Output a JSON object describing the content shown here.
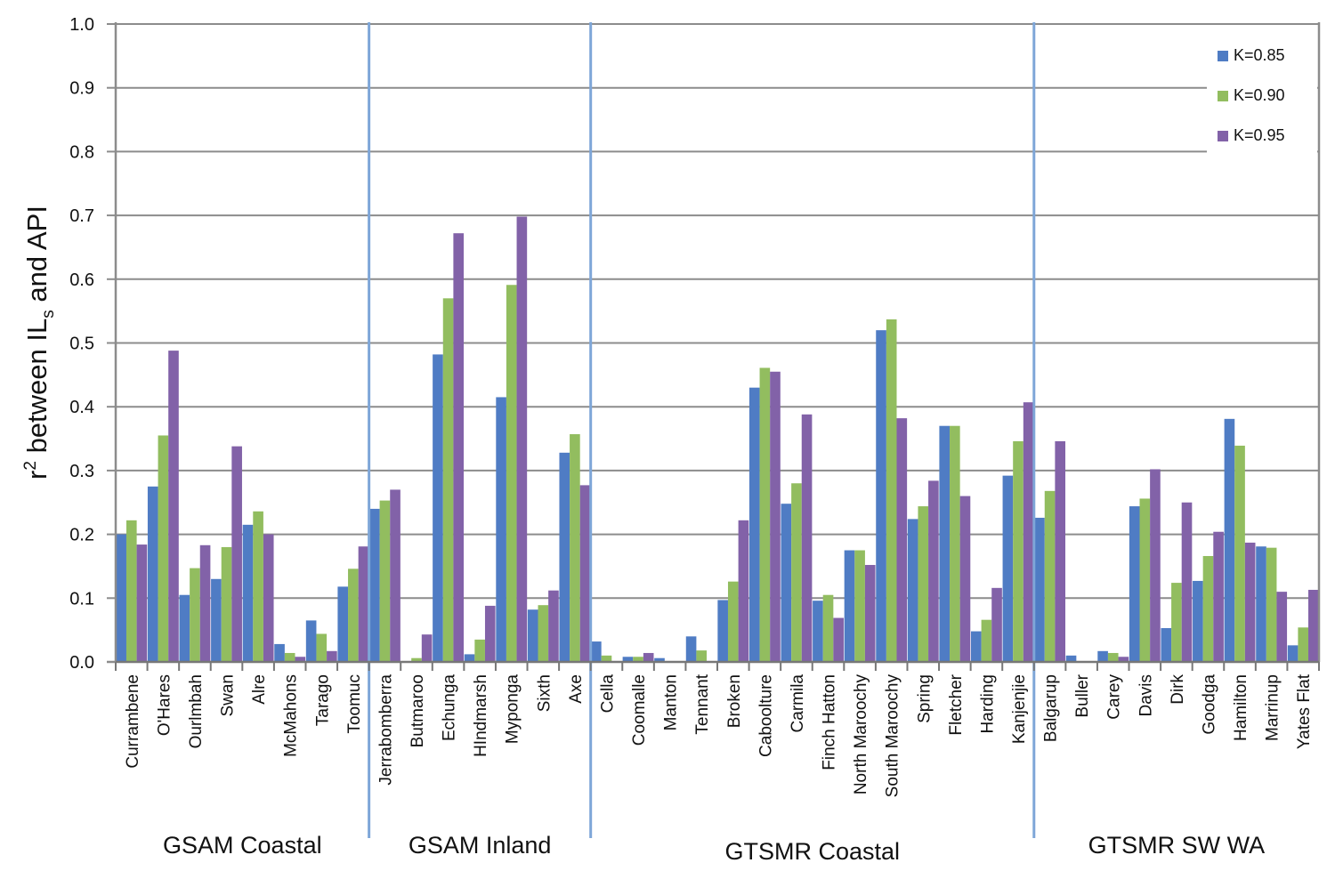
{
  "chart_data": {
    "type": "bar",
    "ylabel": "r² between ILs and API",
    "ylabel_parts": {
      "r": "r",
      "sup": "2",
      "mid": " between IL",
      "sub": "s",
      "end": " and API"
    },
    "ylim": [
      0,
      1.0
    ],
    "yticks": [
      "0.0",
      "0.1",
      "0.2",
      "0.3",
      "0.4",
      "0.5",
      "0.6",
      "0.7",
      "0.8",
      "0.9",
      "1.0"
    ],
    "grid": true,
    "legend_position": "top-right",
    "categories": [
      "Currambene",
      "O'Hares",
      "Ourlmbah",
      "Swan",
      "Alre",
      "McMahons",
      "Tarago",
      "Toomuc",
      "Jerrabomberra",
      "Butmaroo",
      "Echunga",
      "HIndmarsh",
      "Myponga",
      "Sixth",
      "Axe",
      "Cella",
      "Coomalle",
      "Manton",
      "Tennant",
      "Broken",
      "Caboolture",
      "Carmila",
      "Finch Hatton",
      "North Maroochy",
      "South Maroochy",
      "Spring",
      "Fletcher",
      "Harding",
      "Kanjenjie",
      "Balgarup",
      "Buller",
      "Carey",
      "Davis",
      "Dirk",
      "Goodga",
      "Hamilton",
      "Marrinup",
      "Yates Flat"
    ],
    "groups": [
      {
        "label": "GSAM  Coastal",
        "start": 0,
        "end": 7
      },
      {
        "label": "GSAM Inland",
        "start": 8,
        "end": 14
      },
      {
        "label": "GTSMR Coastal",
        "start": 15,
        "end": 28
      },
      {
        "label": "GTSMR SW WA",
        "start": 29,
        "end": 37
      }
    ],
    "series": [
      {
        "name": "K=0.85",
        "color": "#4f7cc4",
        "values": [
          0.2,
          0.275,
          0.105,
          0.13,
          0.215,
          0.028,
          0.065,
          0.118,
          0.24,
          0.0,
          0.482,
          0.012,
          0.415,
          0.082,
          0.328,
          0.032,
          0.008,
          0.006,
          0.04,
          0.097,
          0.43,
          0.248,
          0.096,
          0.175,
          0.52,
          0.224,
          0.37,
          0.048,
          0.292,
          0.226,
          0.01,
          0.017,
          0.244,
          0.053,
          0.127,
          0.381,
          0.181,
          0.026
        ]
      },
      {
        "name": "K=0.90",
        "color": "#92bd5f",
        "values": [
          0.222,
          0.355,
          0.147,
          0.18,
          0.236,
          0.014,
          0.044,
          0.146,
          0.253,
          0.006,
          0.57,
          0.035,
          0.591,
          0.089,
          0.357,
          0.01,
          0.008,
          0.0,
          0.018,
          0.126,
          0.461,
          0.28,
          0.105,
          0.175,
          0.537,
          0.244,
          0.37,
          0.066,
          0.346,
          0.268,
          0.0,
          0.014,
          0.256,
          0.124,
          0.166,
          0.339,
          0.179,
          0.054
        ]
      },
      {
        "name": "K=0.95",
        "color": "#8262a8",
        "values": [
          0.184,
          0.488,
          0.183,
          0.338,
          0.2,
          0.008,
          0.017,
          0.181,
          0.27,
          0.043,
          0.672,
          0.088,
          0.698,
          0.112,
          0.277,
          0.0,
          0.014,
          0.0,
          0.0,
          0.222,
          0.455,
          0.388,
          0.069,
          0.152,
          0.382,
          0.284,
          0.26,
          0.116,
          0.407,
          0.346,
          0.0,
          0.008,
          0.302,
          0.25,
          0.204,
          0.187,
          0.11,
          0.113
        ]
      }
    ]
  }
}
